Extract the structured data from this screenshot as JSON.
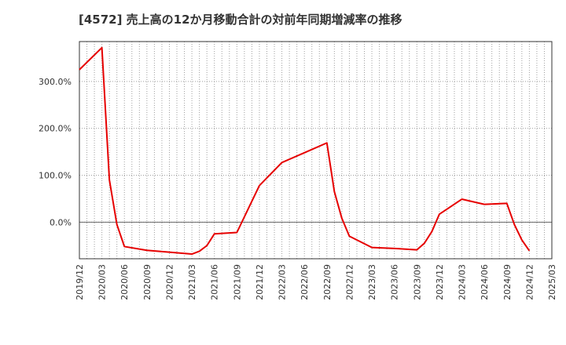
{
  "chart_data": {
    "type": "line",
    "title": "[4572]  売上高の12か月移動合計の対前年同期増減率の推移",
    "xlabel": "",
    "ylabel": "",
    "x_ticks": [
      "2019/12",
      "2020/03",
      "2020/06",
      "2020/09",
      "2020/12",
      "2021/03",
      "2021/06",
      "2021/09",
      "2021/12",
      "2022/03",
      "2022/06",
      "2022/09",
      "2022/12",
      "2023/03",
      "2023/06",
      "2023/09",
      "2023/12",
      "2024/03",
      "2024/06",
      "2024/09",
      "2024/12",
      "2025/03"
    ],
    "y_ticks": [
      {
        "value": 0,
        "label": "0.0%"
      },
      {
        "value": 100,
        "label": "100.0%"
      },
      {
        "value": 200,
        "label": "200.0%"
      },
      {
        "value": 300,
        "label": "300.0%"
      }
    ],
    "xlim": [
      "2019/12",
      "2025/03"
    ],
    "ylim": [
      -78,
      385
    ],
    "grid": true,
    "series": [
      {
        "color": "#e60000",
        "points": [
          {
            "x": "2019/12",
            "y": 325
          },
          {
            "x": "2020/03",
            "y": 372
          },
          {
            "x": "2020/04",
            "y": 90
          },
          {
            "x": "2020/05",
            "y": -5
          },
          {
            "x": "2020/06",
            "y": -52
          },
          {
            "x": "2020/09",
            "y": -60
          },
          {
            "x": "2020/12",
            "y": -64
          },
          {
            "x": "2021/03",
            "y": -68
          },
          {
            "x": "2021/04",
            "y": -62
          },
          {
            "x": "2021/05",
            "y": -50
          },
          {
            "x": "2021/06",
            "y": -25
          },
          {
            "x": "2021/09",
            "y": -22
          },
          {
            "x": "2021/12",
            "y": 78
          },
          {
            "x": "2022/03",
            "y": 127
          },
          {
            "x": "2022/06",
            "y": 148
          },
          {
            "x": "2022/09",
            "y": 169
          },
          {
            "x": "2022/10",
            "y": 65
          },
          {
            "x": "2022/11",
            "y": 8
          },
          {
            "x": "2022/12",
            "y": -30
          },
          {
            "x": "2023/03",
            "y": -54
          },
          {
            "x": "2023/06",
            "y": -56
          },
          {
            "x": "2023/09",
            "y": -59
          },
          {
            "x": "2023/10",
            "y": -45
          },
          {
            "x": "2023/11",
            "y": -20
          },
          {
            "x": "2023/12",
            "y": 17
          },
          {
            "x": "2024/03",
            "y": 49
          },
          {
            "x": "2024/06",
            "y": 38
          },
          {
            "x": "2024/09",
            "y": 40
          },
          {
            "x": "2024/10",
            "y": -5
          },
          {
            "x": "2024/11",
            "y": -38
          },
          {
            "x": "2024/12",
            "y": -61
          }
        ]
      }
    ]
  }
}
